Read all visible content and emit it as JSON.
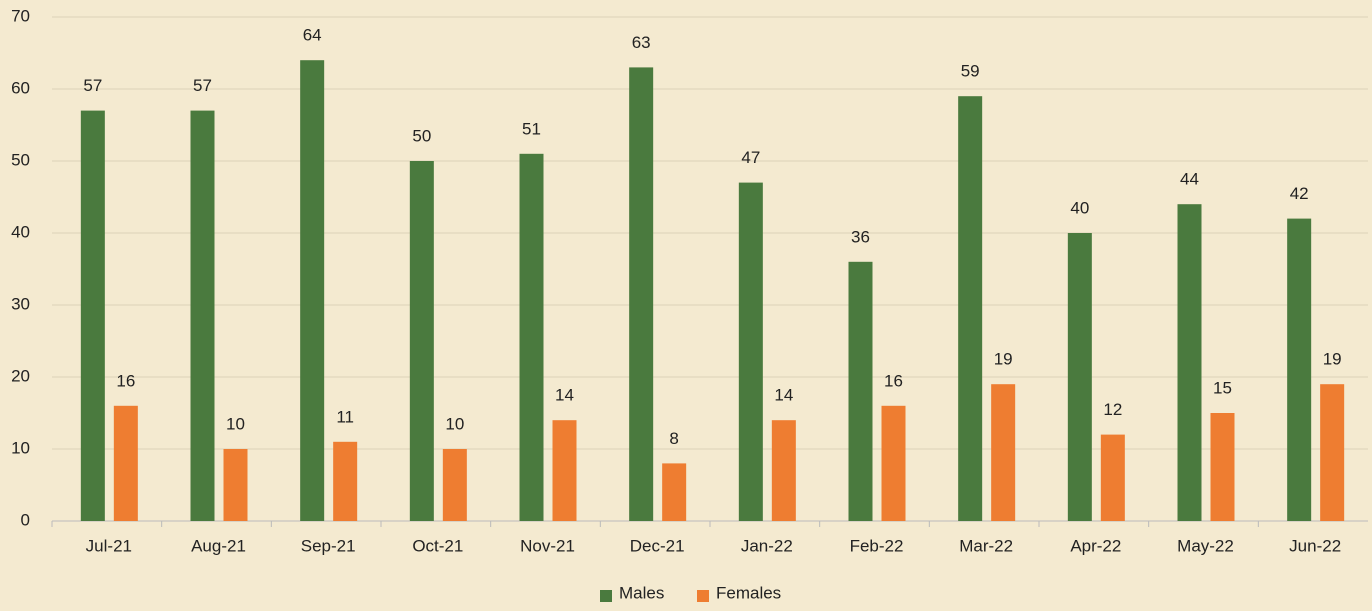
{
  "chart_data": {
    "type": "bar",
    "categories": [
      "Jul-21",
      "Aug-21",
      "Sep-21",
      "Oct-21",
      "Nov-21",
      "Dec-21",
      "Jan-22",
      "Feb-22",
      "Mar-22",
      "Apr-22",
      "May-22",
      "Jun-22"
    ],
    "series": [
      {
        "name": "Males",
        "color": "#4a7a3e",
        "values": [
          57,
          57,
          64,
          50,
          51,
          63,
          47,
          36,
          59,
          40,
          44,
          42
        ]
      },
      {
        "name": "Females",
        "color": "#ee7d31",
        "values": [
          16,
          10,
          11,
          10,
          14,
          8,
          14,
          16,
          19,
          12,
          15,
          19
        ]
      }
    ],
    "ylim": [
      0,
      70
    ],
    "yticks": [
      0,
      10,
      20,
      30,
      40,
      50,
      60,
      70
    ],
    "grid": true,
    "legend": "bottom"
  }
}
